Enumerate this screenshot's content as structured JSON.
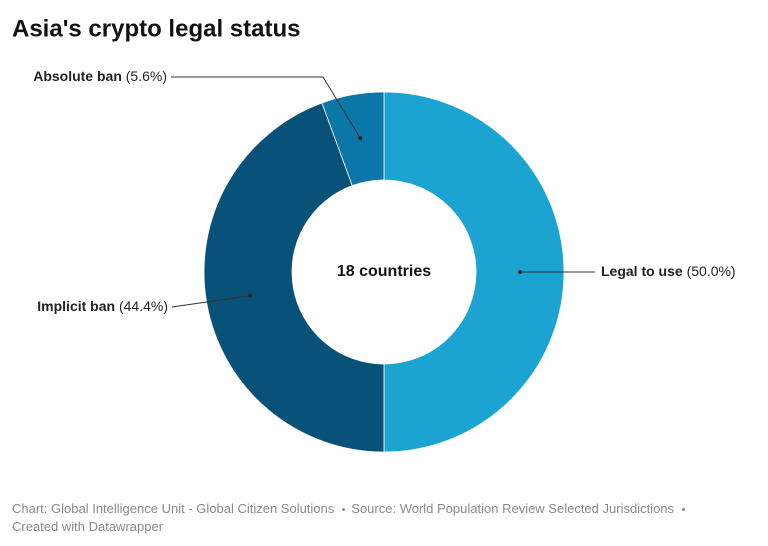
{
  "chart_data": {
    "type": "donut",
    "title": "Asia's crypto legal status",
    "center_label": "18 countries",
    "categories": [
      "Legal to use",
      "Implicit ban",
      "Absolute ban"
    ],
    "values": [
      50.0,
      44.4,
      5.6
    ],
    "value_labels": [
      "(50.0%)",
      "(44.4%)",
      "(5.6%)"
    ],
    "colors": [
      "#1ba3d1",
      "#08527a",
      "#0b77a8"
    ],
    "footer": [
      "Chart: Global Intelligence Unit - Global Citizen Solutions",
      "Source: World Population Review Selected Jurisdictions",
      "Created with Datawrapper"
    ]
  }
}
